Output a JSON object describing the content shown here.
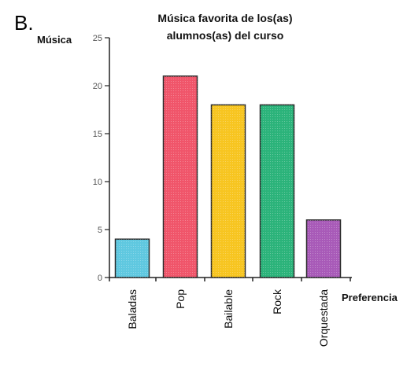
{
  "figure_label": "B.",
  "chart_data": {
    "type": "bar",
    "title_lines": [
      "Música favorita de los(as)",
      "alumnos(as) del curso"
    ],
    "ylabel": "Música",
    "xlabel": "Preferencia",
    "categories": [
      "Baladas",
      "Pop",
      "Bailable",
      "Rock",
      "Orquestada"
    ],
    "values": [
      4,
      21,
      18,
      18,
      6
    ],
    "colors": [
      "#5fc8e0",
      "#f0556a",
      "#f7c520",
      "#2bb37a",
      "#a85ab8"
    ],
    "ylim": [
      0,
      25
    ],
    "yticks": [
      0,
      5,
      10,
      15,
      20,
      25
    ],
    "grid": false,
    "legend": "none"
  }
}
